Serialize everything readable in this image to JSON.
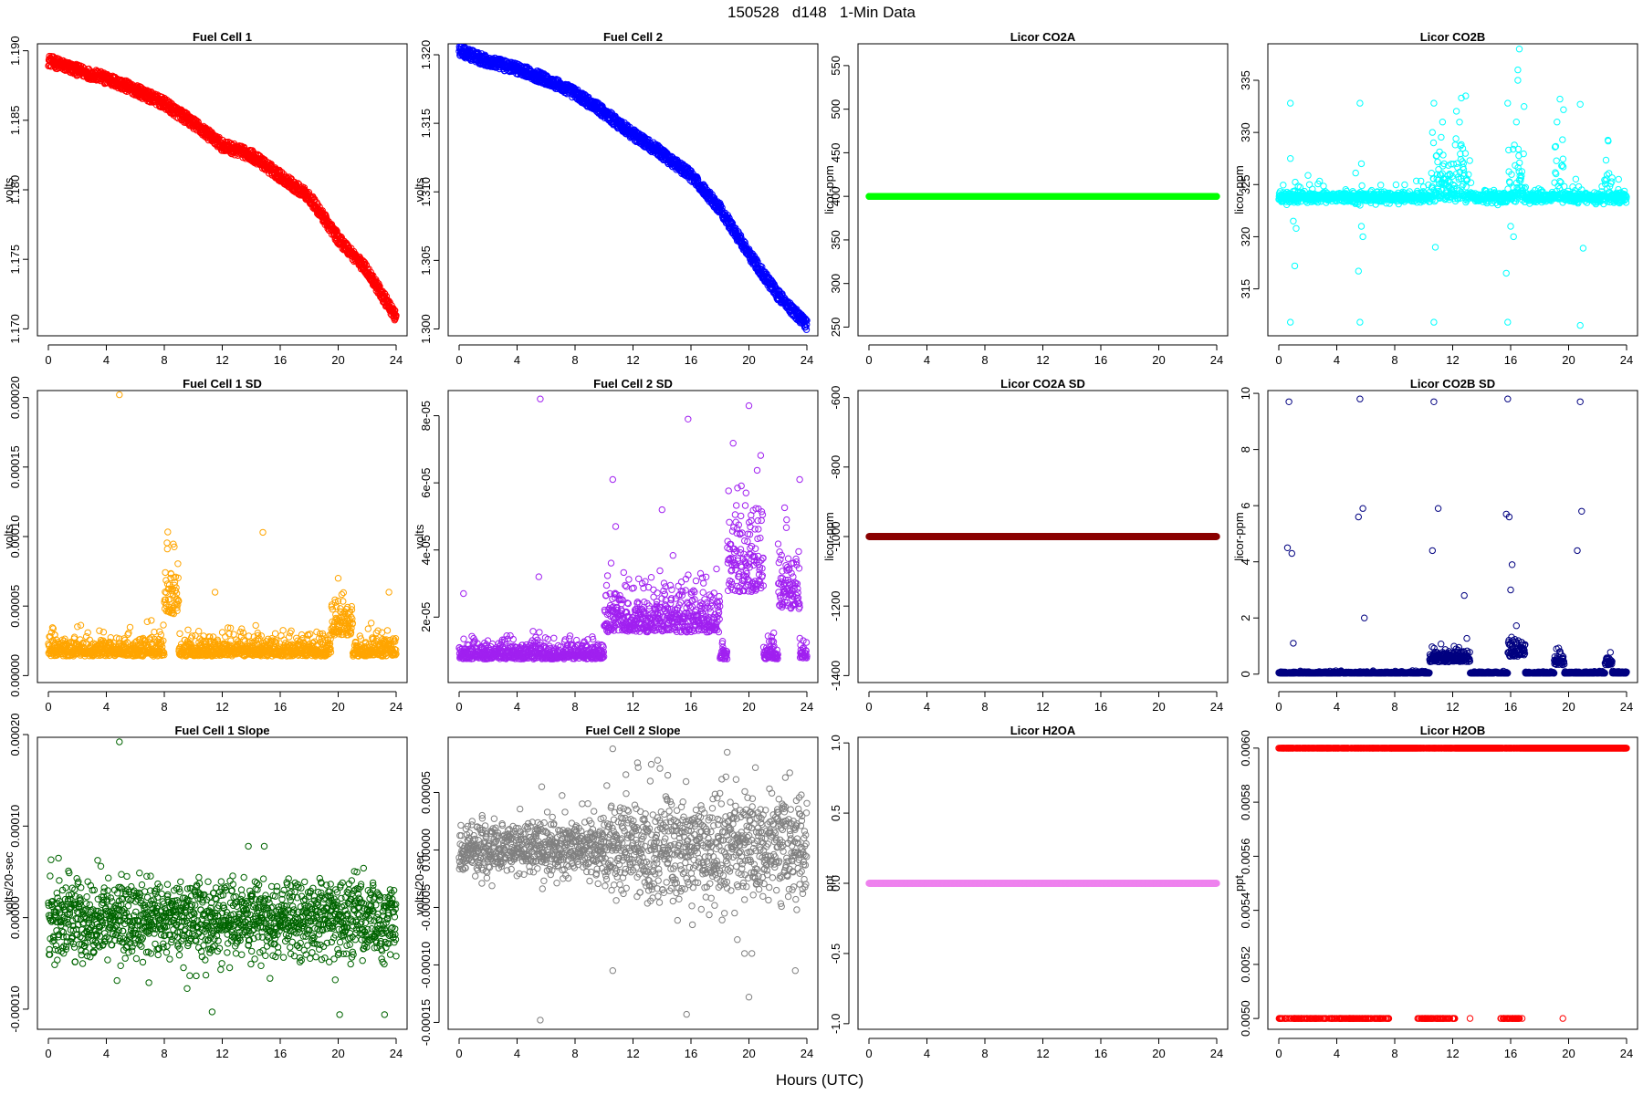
{
  "figure": {
    "title": "150528   d148   1-Min Data",
    "xlabel": "Hours (UTC)"
  },
  "chart_data": [
    {
      "type": "scatter",
      "title": "Fuel Cell 1",
      "ylabel": "volts",
      "color": "#ff0000",
      "xlim": [
        0,
        24
      ],
      "x_ticks": [
        "0",
        "4",
        "8",
        "12",
        "16",
        "20",
        "24"
      ],
      "ylim": [
        1.1695,
        1.1905
      ],
      "y_ticks": [
        {
          "v": 1.17,
          "label": "1.170"
        },
        {
          "v": 1.175,
          "label": "1.175"
        },
        {
          "v": 1.18,
          "label": "1.180"
        },
        {
          "v": 1.185,
          "label": "1.185"
        },
        {
          "v": 1.19,
          "label": "1.190"
        }
      ],
      "pattern": "curve",
      "noise": 0.0004,
      "dense": true,
      "curve": [
        [
          0,
          1.1893
        ],
        [
          2,
          1.1886
        ],
        [
          4,
          1.188
        ],
        [
          6,
          1.1872
        ],
        [
          8,
          1.1862
        ],
        [
          10,
          1.1848
        ],
        [
          12,
          1.1832
        ],
        [
          14,
          1.1825
        ],
        [
          16,
          1.181
        ],
        [
          18,
          1.1795
        ],
        [
          20,
          1.1765
        ],
        [
          22,
          1.1742
        ],
        [
          24,
          1.1708
        ]
      ]
    },
    {
      "type": "scatter",
      "title": "Fuel Cell 2",
      "ylabel": "volts",
      "color": "#0000ff",
      "xlim": [
        0,
        24
      ],
      "x_ticks": [
        "0",
        "4",
        "8",
        "12",
        "16",
        "20",
        "24"
      ],
      "ylim": [
        1.2995,
        1.3208
      ],
      "y_ticks": [
        {
          "v": 1.3,
          "label": "1.300"
        },
        {
          "v": 1.305,
          "label": "1.305"
        },
        {
          "v": 1.31,
          "label": "1.310"
        },
        {
          "v": 1.315,
          "label": "1.315"
        },
        {
          "v": 1.32,
          "label": "1.320"
        }
      ],
      "pattern": "curve",
      "noise": 0.0004,
      "dense": true,
      "curve": [
        [
          0,
          1.3203
        ],
        [
          2,
          1.3195
        ],
        [
          4,
          1.319
        ],
        [
          6,
          1.3182
        ],
        [
          8,
          1.3172
        ],
        [
          10,
          1.3158
        ],
        [
          12,
          1.3142
        ],
        [
          14,
          1.3128
        ],
        [
          16,
          1.3112
        ],
        [
          18,
          1.3088
        ],
        [
          20,
          1.3055
        ],
        [
          22,
          1.3025
        ],
        [
          24,
          1.3003
        ]
      ]
    },
    {
      "type": "scatter",
      "title": "Licor CO2A",
      "ylabel": "licor-ppm",
      "color": "#00ff00",
      "xlim": [
        0,
        24
      ],
      "x_ticks": [
        "0",
        "4",
        "8",
        "12",
        "16",
        "20",
        "24"
      ],
      "ylim": [
        240,
        575
      ],
      "y_ticks": [
        {
          "v": 250,
          "label": "250"
        },
        {
          "v": 300,
          "label": "300"
        },
        {
          "v": 350,
          "label": "350"
        },
        {
          "v": 400,
          "label": "400"
        },
        {
          "v": 450,
          "label": "450"
        },
        {
          "v": 500,
          "label": "500"
        },
        {
          "v": 550,
          "label": "550"
        }
      ],
      "pattern": "constant",
      "value": 400,
      "noise": 0,
      "dense": true
    },
    {
      "type": "scatter",
      "title": "Licor CO2B",
      "ylabel": "licor-ppm",
      "color": "#00ffff",
      "xlim": [
        0,
        24
      ],
      "x_ticks": [
        "0",
        "4",
        "8",
        "12",
        "16",
        "20",
        "24"
      ],
      "ylim": [
        310.5,
        338.5
      ],
      "y_ticks": [
        {
          "v": 315,
          "label": "315"
        },
        {
          "v": 320,
          "label": "320"
        },
        {
          "v": 325,
          "label": "325"
        },
        {
          "v": 330,
          "label": "330"
        },
        {
          "v": 335,
          "label": "335"
        }
      ],
      "pattern": "baseline",
      "value": 323.8,
      "noise": 0.25,
      "spread": 0.6,
      "bursts": [
        [
          10.5,
          13.2
        ],
        [
          15.8,
          17.0
        ],
        [
          19.0,
          19.7
        ],
        [
          22.5,
          23.0
        ]
      ],
      "outliers": [
        [
          0.8,
          311.8
        ],
        [
          0.8,
          332.8
        ],
        [
          0.8,
          327.5
        ],
        [
          1.0,
          321.5
        ],
        [
          1.1,
          317.2
        ],
        [
          1.2,
          320.8
        ],
        [
          5.6,
          311.8
        ],
        [
          5.6,
          332.8
        ],
        [
          5.7,
          327.0
        ],
        [
          5.7,
          321.0
        ],
        [
          5.8,
          320.0
        ],
        [
          5.5,
          316.7
        ],
        [
          10.7,
          311.8
        ],
        [
          10.7,
          332.8
        ],
        [
          10.8,
          319.0
        ],
        [
          10.6,
          330.0
        ],
        [
          11.3,
          331.0
        ],
        [
          12.6,
          333.3
        ],
        [
          12.9,
          333.5
        ],
        [
          15.8,
          311.8
        ],
        [
          15.8,
          332.8
        ],
        [
          16.0,
          321.0
        ],
        [
          16.2,
          320.0
        ],
        [
          15.7,
          316.5
        ],
        [
          16.4,
          331.0
        ],
        [
          16.5,
          336.0
        ],
        [
          16.6,
          338.0
        ],
        [
          16.5,
          335.0
        ],
        [
          19.4,
          333.2
        ],
        [
          20.8,
          311.5
        ],
        [
          20.8,
          332.7
        ],
        [
          21.0,
          318.9
        ],
        [
          19.2,
          331.0
        ]
      ]
    },
    {
      "type": "scatter",
      "title": "Fuel Cell 1 SD",
      "ylabel": "volts",
      "color": "#ffa500",
      "xlim": [
        0,
        24
      ],
      "x_ticks": [
        "0",
        "4",
        "8",
        "12",
        "16",
        "20",
        "24"
      ],
      "ylim": [
        -5e-06,
        0.000205
      ],
      "y_ticks": [
        {
          "v": 0,
          "label": "0.00000"
        },
        {
          "v": 5e-05,
          "label": "0.00005"
        },
        {
          "v": 0.0001,
          "label": "0.00010"
        },
        {
          "v": 0.00015,
          "label": "0.00015"
        },
        {
          "v": 0.0002,
          "label": "0.00020"
        }
      ],
      "pattern": "sdnoise",
      "value": 1.4e-05,
      "noise": 8e-06,
      "bumps": [
        [
          8,
          9,
          3e-05
        ],
        [
          19.5,
          21,
          1.5e-05
        ]
      ],
      "outliers": [
        [
          4.9,
          0.000202
        ],
        [
          14.8,
          0.000103
        ],
        [
          8.7,
          6.5e-05
        ],
        [
          20.0,
          7e-05
        ],
        [
          23.5,
          6e-05
        ],
        [
          11.5,
          6e-05
        ]
      ]
    },
    {
      "type": "scatter",
      "title": "Fuel Cell 2 SD",
      "ylabel": "volts",
      "color": "#a020f0",
      "xlim": [
        0,
        24
      ],
      "x_ticks": [
        "0",
        "4",
        "8",
        "12",
        "16",
        "20",
        "24"
      ],
      "ylim": [
        5e-07,
        8.75e-05
      ],
      "y_ticks": [
        {
          "v": 2e-05,
          "label": "2e-05"
        },
        {
          "v": 4e-05,
          "label": "4e-05"
        },
        {
          "v": 6e-05,
          "label": "6e-05"
        },
        {
          "v": 8e-05,
          "label": "8e-05"
        }
      ],
      "pattern": "sdnoise",
      "value": 7.5e-06,
      "noise": 3e-06,
      "bumps": [
        [
          10,
          18,
          8e-06
        ],
        [
          18.5,
          21,
          2e-05
        ],
        [
          22,
          23.5,
          1.5e-05
        ]
      ],
      "outliers": [
        [
          5.6,
          8.5e-05
        ],
        [
          10.6,
          6.1e-05
        ],
        [
          15.8,
          7.9e-05
        ],
        [
          20.0,
          8.3e-05
        ],
        [
          23.5,
          6.1e-05
        ],
        [
          0.3,
          2.7e-05
        ],
        [
          5.5,
          3.2e-05
        ],
        [
          10.8,
          4.7e-05
        ],
        [
          14.0,
          5.2e-05
        ],
        [
          22.6,
          4.9e-05
        ],
        [
          19.8,
          5.7e-05
        ]
      ]
    },
    {
      "type": "scatter",
      "title": "Licor CO2A SD",
      "ylabel": "licor-ppm",
      "color": "#8b0000",
      "xlim": [
        0,
        24
      ],
      "x_ticks": [
        "0",
        "4",
        "8",
        "12",
        "16",
        "20",
        "24"
      ],
      "ylim": [
        -1420,
        -580
      ],
      "y_ticks": [
        {
          "v": -1400,
          "label": "-1400"
        },
        {
          "v": -1200,
          "label": "-1200"
        },
        {
          "v": -1000,
          "label": "-1000"
        },
        {
          "v": -800,
          "label": "-800"
        },
        {
          "v": -600,
          "label": "-600"
        }
      ],
      "pattern": "constant",
      "value": -1000,
      "noise": 0,
      "dense": true
    },
    {
      "type": "scatter",
      "title": "Licor CO2B SD",
      "ylabel": "licor-ppm",
      "color": "#000080",
      "xlim": [
        0,
        24
      ],
      "x_ticks": [
        "0",
        "4",
        "8",
        "12",
        "16",
        "20",
        "24"
      ],
      "ylim": [
        -0.3,
        10.1
      ],
      "y_ticks": [
        {
          "v": 0,
          "label": "0"
        },
        {
          "v": 2,
          "label": "2"
        },
        {
          "v": 4,
          "label": "4"
        },
        {
          "v": 6,
          "label": "6"
        },
        {
          "v": 8,
          "label": "8"
        },
        {
          "v": 10,
          "label": "10"
        }
      ],
      "pattern": "sdnoise",
      "value": 0.03,
      "noise": 0.03,
      "bumps": [
        [
          10.4,
          13.2,
          0.4
        ],
        [
          15.8,
          17.0,
          0.6
        ],
        [
          19.0,
          19.7,
          0.3
        ],
        [
          22.5,
          23.0,
          0.3
        ]
      ],
      "outliers": [
        [
          0.7,
          9.7
        ],
        [
          5.6,
          9.8
        ],
        [
          10.7,
          9.7
        ],
        [
          15.8,
          9.8
        ],
        [
          20.8,
          9.7
        ],
        [
          0.6,
          4.5
        ],
        [
          0.9,
          4.3
        ],
        [
          5.5,
          5.6
        ],
        [
          5.8,
          5.9
        ],
        [
          10.6,
          4.4
        ],
        [
          11.0,
          5.9
        ],
        [
          15.7,
          5.7
        ],
        [
          15.9,
          5.6
        ],
        [
          20.6,
          4.4
        ],
        [
          20.9,
          5.8
        ],
        [
          16.1,
          3.9
        ],
        [
          16.0,
          3.0
        ],
        [
          12.8,
          2.8
        ],
        [
          1.0,
          1.1
        ],
        [
          5.9,
          2.0
        ]
      ]
    },
    {
      "type": "scatter",
      "title": "Fuel Cell 1 Slope",
      "ylabel": "volts/20-sec",
      "color": "#006400",
      "xlim": [
        0,
        24
      ],
      "x_ticks": [
        "0",
        "4",
        "8",
        "12",
        "16",
        "20",
        "24"
      ],
      "ylim": [
        -0.000122,
        0.000197
      ],
      "y_ticks": [
        {
          "v": -0.0001,
          "label": "-0.00010"
        },
        {
          "v": 0,
          "label": "0.00000"
        },
        {
          "v": 0.0001,
          "label": "0.00010"
        },
        {
          "v": 0.0002,
          "label": "0.00020"
        }
      ],
      "pattern": "noise",
      "value": -2e-06,
      "noise": 2.2e-05,
      "outliers": [
        [
          4.9,
          0.000192
        ],
        [
          0.7,
          6.5e-05
        ],
        [
          11.3,
          -0.000103
        ],
        [
          13.8,
          7.8e-05
        ],
        [
          14.9,
          7.8e-05
        ],
        [
          20.1,
          -0.000106
        ],
        [
          23.2,
          -0.000106
        ],
        [
          19.8,
          -6.8e-05
        ]
      ]
    },
    {
      "type": "scatter",
      "title": "Fuel Cell 2 Slope",
      "ylabel": "volts/20-sec",
      "color": "#808080",
      "xlim": [
        0,
        24
      ],
      "x_ticks": [
        "0",
        "4",
        "8",
        "12",
        "16",
        "20",
        "24"
      ],
      "ylim": [
        -0.000156,
        9.8e-05
      ],
      "y_ticks": [
        {
          "v": -0.00015,
          "label": "-0.00015"
        },
        {
          "v": -0.0001,
          "label": "-0.00010"
        },
        {
          "v": -5e-05,
          "label": "-0.00005"
        },
        {
          "v": 0,
          "label": "0.00000"
        },
        {
          "v": 5e-05,
          "label": "0.00005"
        }
      ],
      "pattern": "noise",
      "value": 2e-06,
      "noise": 1.2e-05,
      "wider": [
        [
          10,
          24,
          2.2e-05
        ]
      ],
      "outliers": [
        [
          5.6,
          -0.000148
        ],
        [
          5.7,
          5.5e-05
        ],
        [
          10.6,
          8.8e-05
        ],
        [
          10.6,
          -0.000105
        ],
        [
          13.7,
          7.8e-05
        ],
        [
          14.4,
          6.5e-05
        ],
        [
          15.7,
          -0.000143
        ],
        [
          16.1,
          -6.5e-05
        ],
        [
          18.5,
          8.5e-05
        ],
        [
          19.2,
          -7.8e-05
        ],
        [
          19.7,
          -9e-05
        ],
        [
          20.0,
          -0.000128
        ],
        [
          20.2,
          -9e-05
        ],
        [
          23.2,
          -0.000105
        ],
        [
          23.3,
          -5.2e-05
        ],
        [
          21.9,
          -3.5e-05
        ],
        [
          22.3,
          4e-05
        ]
      ]
    },
    {
      "type": "scatter",
      "title": "Licor H2OA",
      "ylabel": "ppt",
      "color": "#ee82ee",
      "xlim": [
        0,
        24
      ],
      "x_ticks": [
        "0",
        "4",
        "8",
        "12",
        "16",
        "20",
        "24"
      ],
      "ylim": [
        -1.04,
        1.04
      ],
      "y_ticks": [
        {
          "v": -1,
          "label": "-1.0"
        },
        {
          "v": -0.5,
          "label": "-0.5"
        },
        {
          "v": 0,
          "label": "0.0"
        },
        {
          "v": 0.5,
          "label": "0.5"
        },
        {
          "v": 1,
          "label": "1.0"
        }
      ],
      "pattern": "constant",
      "value": 0,
      "noise": 0,
      "dense": true
    },
    {
      "type": "scatter",
      "title": "Licor H2OB",
      "ylabel": "ppt",
      "color": "#ff0000",
      "xlim": [
        0,
        24
      ],
      "x_ticks": [
        "0",
        "4",
        "8",
        "12",
        "16",
        "20",
        "24"
      ],
      "ylim": [
        0.00496,
        0.00604
      ],
      "y_ticks": [
        {
          "v": 0.005,
          "label": "0.0050"
        },
        {
          "v": 0.0052,
          "label": "0.0052"
        },
        {
          "v": 0.0054,
          "label": "0.0054"
        },
        {
          "v": 0.0056,
          "label": "0.0056"
        },
        {
          "v": 0.0058,
          "label": "0.0058"
        },
        {
          "v": 0.006,
          "label": "0.0060"
        }
      ],
      "pattern": "binary",
      "high": 0.006,
      "low": 0.005,
      "low_ranges": [
        [
          0,
          7.7
        ],
        [
          9.5,
          12.2
        ],
        [
          15.3,
          16.8
        ]
      ],
      "low_isolated": [
        [
          19.6,
          0.005
        ],
        [
          13.2,
          0.005
        ],
        [
          11.8,
          0.005
        ]
      ]
    }
  ]
}
